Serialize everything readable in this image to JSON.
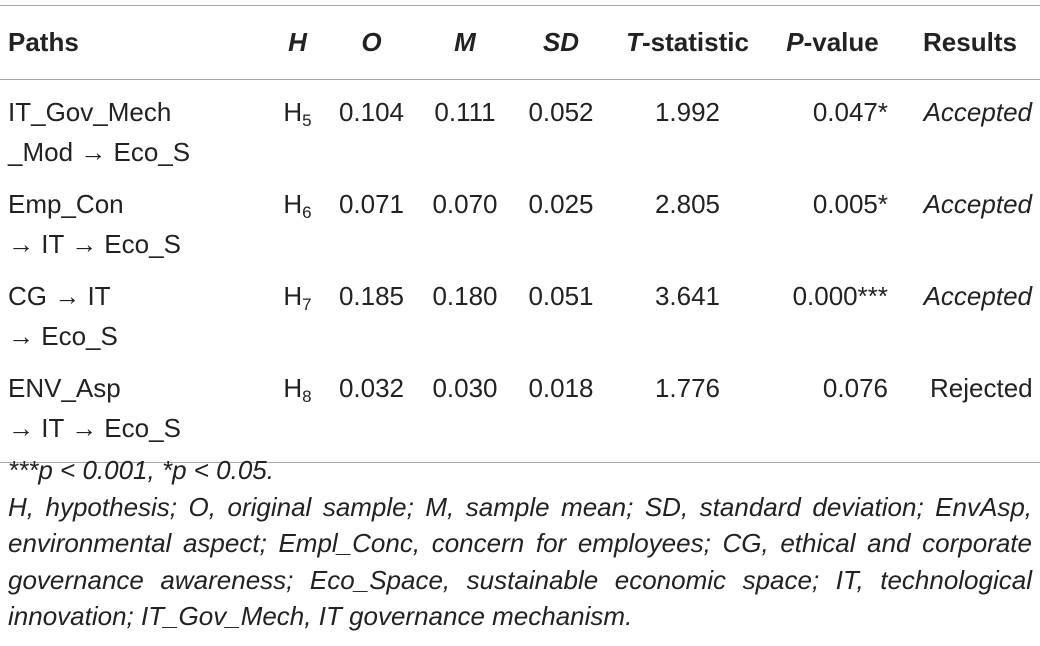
{
  "table": {
    "header": [
      [
        "Paths"
      ],
      [
        "H"
      ],
      [
        "O"
      ],
      [
        "M"
      ],
      [
        "SD"
      ],
      [
        "T",
        "-statistic"
      ],
      [
        "P",
        "-value"
      ],
      [
        "Results"
      ]
    ],
    "rows": [
      {
        "path": [
          "IT_Gov_Mech",
          "_Mod → Eco_S"
        ],
        "h": [
          "H",
          "5"
        ],
        "o": "0.104",
        "m": "0.111",
        "sd": "0.052",
        "t": "1.992",
        "p": "0.047*",
        "result": "Accepted"
      },
      {
        "path": [
          "Emp_Con",
          "→ IT → Eco_S"
        ],
        "h": [
          "H",
          "6"
        ],
        "o": "0.071",
        "m": "0.070",
        "sd": "0.025",
        "t": "2.805",
        "p": "0.005*",
        "result": "Accepted"
      },
      {
        "path": [
          "CG → IT",
          "→ Eco_S"
        ],
        "h": [
          "H",
          "7"
        ],
        "o": "0.185",
        "m": "0.180",
        "sd": "0.051",
        "t": "3.641",
        "p": "0.000***",
        "result": "Accepted"
      },
      {
        "path": [
          "ENV_Asp",
          "→ IT → Eco_S"
        ],
        "h": [
          "H",
          "8"
        ],
        "o": "0.032",
        "m": "0.030",
        "sd": "0.018",
        "t": "1.776",
        "p": "0.076",
        "result": "Rejected"
      }
    ]
  },
  "footnotes": {
    "significance": "***p < 0.001, *p < 0.05.",
    "abbreviations": "H, hypothesis; O, original sample; M, sample mean; SD, standard deviation; EnvAsp, environmental aspect; Empl_Conc, concern for employees; CG, ethical and corporate governance awareness; Eco_Space, sustainable economic space; IT, technological innovation; IT_Gov_Mech, IT governance mechanism."
  }
}
